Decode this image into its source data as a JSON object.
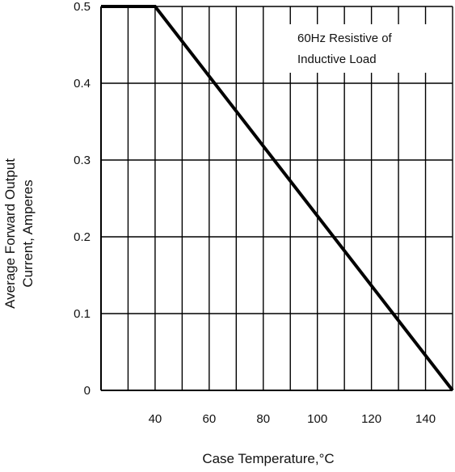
{
  "chart_data": {
    "type": "line",
    "xlabel": "Case Temperature,",
    "xlabel_unit": "°C",
    "ylabel_lines": [
      "Average Forward Output",
      "Current, Amperes"
    ],
    "x_ticks": [
      "40",
      "60",
      "80",
      "100",
      "120",
      "140"
    ],
    "y_ticks": [
      "0",
      "0.1",
      "0.2",
      "0.3",
      "0.4",
      "0.5"
    ],
    "xlim": [
      20,
      150
    ],
    "ylim": [
      0,
      0.5
    ],
    "grid": true,
    "annotation_lines": [
      "60Hz Resistive of",
      "Inductive Load"
    ],
    "series": [
      {
        "x": [
          20,
          40,
          150
        ],
        "y": [
          0.5,
          0.5,
          0
        ]
      }
    ],
    "colors": {
      "line": "#000000",
      "grid": "#000000"
    }
  }
}
